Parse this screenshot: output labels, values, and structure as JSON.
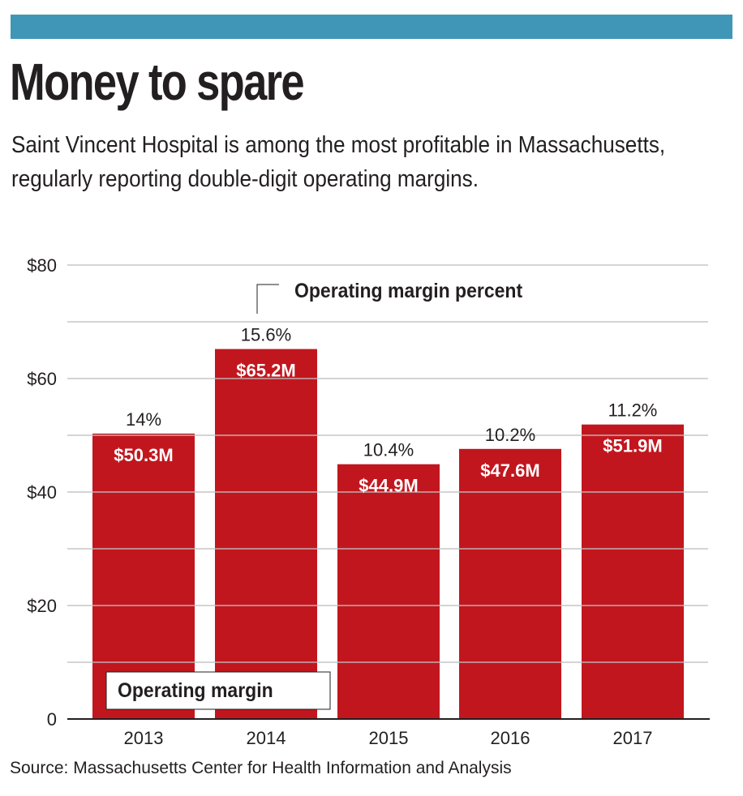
{
  "colors": {
    "topbar": "#4096b7",
    "bar": "#c2161e",
    "grid": "#c0c0c0",
    "axis": "#231f20",
    "text": "#231f20"
  },
  "header": {
    "title": "Money to spare",
    "subtitle": "Saint Vincent Hospital is among the most profitable in Massachusetts, regularly reporting double-digit operating margins."
  },
  "footer": {
    "source": "Source: Massachusetts Center for Health Information and Analysis"
  },
  "chart_data": {
    "type": "bar",
    "title": "Money to spare",
    "xlabel": "",
    "ylabel": "",
    "categories": [
      "2013",
      "2014",
      "2015",
      "2016",
      "2017"
    ],
    "series": [
      {
        "name": "Operating margin",
        "unit": "$M",
        "values": [
          50.3,
          65.2,
          44.9,
          47.6,
          51.9
        ],
        "value_labels": [
          "$50.3M",
          "$65.2M",
          "$44.9M",
          "$47.6M",
          "$51.9M"
        ]
      },
      {
        "name": "Operating margin percent",
        "unit": "%",
        "values": [
          14,
          15.6,
          10.4,
          10.2,
          11.2
        ],
        "value_labels": [
          "14%",
          "15.6%",
          "10.4%",
          "10.2%",
          "11.2%"
        ]
      }
    ],
    "ylim": [
      0,
      80
    ],
    "yticks": [
      0,
      20,
      40,
      60,
      80
    ],
    "ytick_labels": [
      "0",
      "$20",
      "$40",
      "$60",
      "$80"
    ],
    "grid_step": 10,
    "grid": true,
    "legend": {
      "bar_label": "Operating margin",
      "bar_label_placement": "bottom-left",
      "percent_label": "Operating margin percent",
      "percent_label_placement": "top-center"
    }
  }
}
